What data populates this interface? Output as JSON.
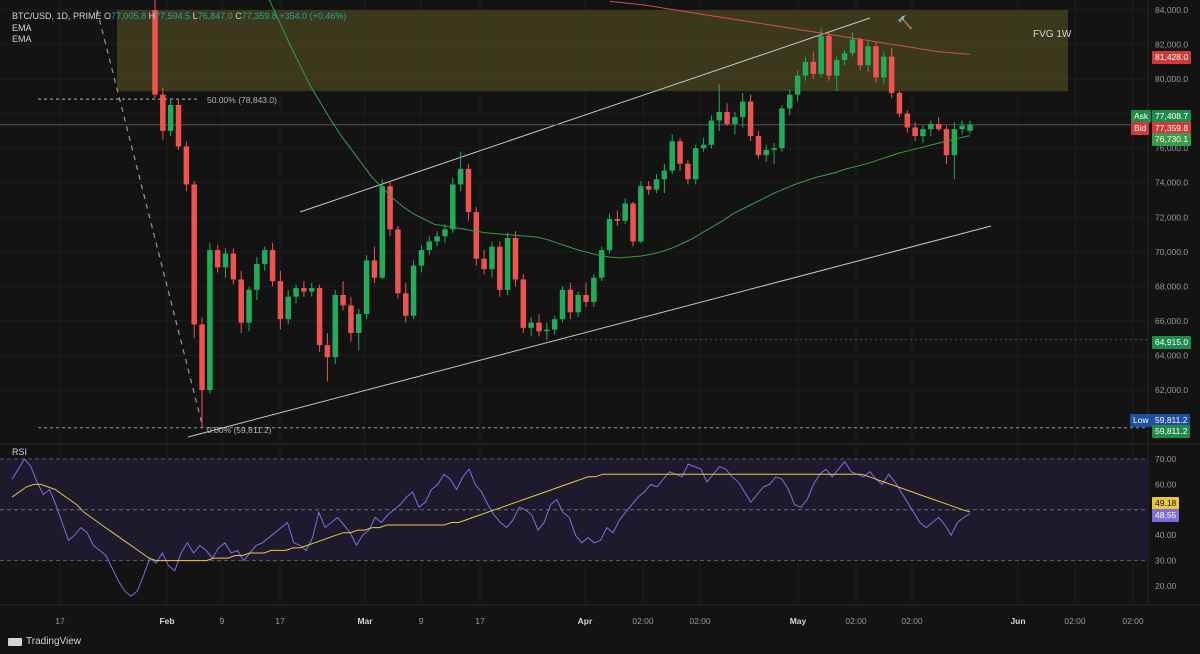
{
  "header": {
    "symbol": "BTC/USD, 1D, PRIME",
    "o_label": "O",
    "o_value": "77,005.8",
    "h_label": "H",
    "h_value": "77,594.5",
    "l_label": "L",
    "l_value": "76,847.0",
    "c_label": "C",
    "c_value": "77,359.8",
    "change": "+354.0 (+0.46%)",
    "ema1": "EMA",
    "ema2": "EMA"
  },
  "annotations": {
    "fvg": "FVG 1W",
    "fib50": "50.00% (78,843.0)",
    "fib0": "0.00% (59,811.2)",
    "hammer": "🔨"
  },
  "price_tags": {
    "ema_red": "81,428.0",
    "ask_label": "Ask",
    "ask": "77,408.7",
    "bid_label": "Bid",
    "bid": "77,359.8",
    "ema_green": "76,730.1",
    "level": "64,915.0",
    "low_label": "Low",
    "low": "59,811.2",
    "low2": "59,811.2",
    "rsi_value": "48.55",
    "rsi_ma": "49.18"
  },
  "rsi_title": "RSI",
  "logo": "TradingView",
  "colors": {
    "up": "#26a69a",
    "up_bright": "#22ab5a",
    "down": "#ef5350",
    "ema_fast": "#3a9c4a",
    "ema_slow": "#d05050",
    "fvg_fill": "#4a4520",
    "rsi_line": "#7e6fd8",
    "rsi_ma": "#e8c840"
  },
  "chart_data": [
    {
      "type": "candlestick",
      "title": "BTC/USD, 1D, PRIME",
      "y_ticks": [
        84000,
        82000,
        80000,
        78000,
        76000,
        74000,
        72000,
        70000,
        68000,
        66000,
        64000,
        62000
      ],
      "y_tick_labels": [
        "84,000.0",
        "82,000.0",
        "80,000.0",
        "78,000.0",
        "76,000.0",
        "74,000.0",
        "72,000.0",
        "70,000.0",
        "68,000.0",
        "66,000.0",
        "64,000.0",
        "62,000.0"
      ],
      "x_tick_labels": [
        "17",
        "Feb",
        "9",
        "17",
        "Mar",
        "9",
        "17",
        "Apr",
        "02:00",
        "02:00",
        "May",
        "02:00",
        "02:00",
        "Jun",
        "02:00",
        "02:00"
      ],
      "x_tick_bold": [
        false,
        true,
        false,
        false,
        true,
        false,
        false,
        true,
        false,
        false,
        true,
        false,
        false,
        true,
        false,
        false
      ],
      "ylim": [
        58500,
        85000
      ],
      "fib_levels": [
        78843.0,
        59811.2
      ],
      "horizontal_levels": [
        64915.0,
        59811.2
      ],
      "fvg_zone": [
        79300,
        84000
      ],
      "candles": [
        [
          84000,
          85000,
          78900,
          79100
        ],
        [
          79100,
          79500,
          76500,
          77000
        ],
        [
          77000,
          78900,
          76700,
          78500
        ],
        [
          78500,
          78800,
          75900,
          76100
        ],
        [
          76100,
          76400,
          73500,
          73900
        ],
        [
          73900,
          74100,
          65000,
          65800
        ],
        [
          65800,
          66200,
          59811,
          62000
        ],
        [
          62000,
          70500,
          61800,
          70100
        ],
        [
          70100,
          70400,
          68800,
          69100
        ],
        [
          69100,
          70200,
          68500,
          69900
        ],
        [
          69900,
          70200,
          68100,
          68400
        ],
        [
          68400,
          68900,
          65300,
          65900
        ],
        [
          65900,
          68000,
          65400,
          67800
        ],
        [
          67800,
          69700,
          67200,
          69300
        ],
        [
          69300,
          70300,
          68900,
          70100
        ],
        [
          70100,
          70500,
          68000,
          68300
        ],
        [
          68300,
          68900,
          65500,
          66100
        ],
        [
          66100,
          67800,
          65800,
          67400
        ],
        [
          67400,
          68100,
          67000,
          67900
        ],
        [
          67900,
          68300,
          67400,
          67700
        ],
        [
          67700,
          68200,
          67400,
          67900
        ],
        [
          67900,
          68100,
          64200,
          64600
        ],
        [
          64600,
          65300,
          62500,
          63900
        ],
        [
          63900,
          67800,
          63500,
          67500
        ],
        [
          67500,
          68300,
          66600,
          66900
        ],
        [
          66900,
          67400,
          64800,
          65300
        ],
        [
          65300,
          66700,
          64300,
          66400
        ],
        [
          66400,
          69800,
          66100,
          69500
        ],
        [
          69500,
          70300,
          68200,
          68500
        ],
        [
          68500,
          74200,
          68400,
          73800
        ],
        [
          73800,
          74100,
          70900,
          71300
        ],
        [
          71300,
          71500,
          67300,
          67600
        ],
        [
          67600,
          68200,
          65900,
          66300
        ],
        [
          66300,
          69500,
          66100,
          69200
        ],
        [
          69200,
          70400,
          68800,
          70100
        ],
        [
          70100,
          70900,
          69800,
          70600
        ],
        [
          70600,
          71200,
          70300,
          70900
        ],
        [
          70900,
          71600,
          70500,
          71300
        ],
        [
          71300,
          74300,
          71100,
          73900
        ],
        [
          73900,
          75800,
          73500,
          74800
        ],
        [
          74800,
          75100,
          71800,
          72300
        ],
        [
          72300,
          72600,
          69200,
          69600
        ],
        [
          69600,
          70100,
          68700,
          69000
        ],
        [
          69000,
          70600,
          68500,
          70300
        ],
        [
          70300,
          70600,
          67400,
          67800
        ],
        [
          67800,
          71100,
          67500,
          70800
        ],
        [
          70800,
          71200,
          68000,
          68400
        ],
        [
          68400,
          68700,
          65300,
          65600
        ],
        [
          65600,
          66200,
          65100,
          65900
        ],
        [
          65900,
          66400,
          65100,
          65400
        ],
        [
          65400,
          65900,
          64900,
          65500
        ],
        [
          65500,
          66300,
          65200,
          66100
        ],
        [
          66100,
          68000,
          65900,
          67800
        ],
        [
          67800,
          68200,
          66100,
          66500
        ],
        [
          66500,
          67700,
          66200,
          67500
        ],
        [
          67500,
          68200,
          66800,
          67100
        ],
        [
          67100,
          68700,
          66800,
          68500
        ],
        [
          68500,
          70300,
          68300,
          70100
        ],
        [
          70100,
          72200,
          69900,
          71900
        ],
        [
          71900,
          72400,
          71500,
          71800
        ],
        [
          71800,
          73100,
          71600,
          72800
        ],
        [
          72800,
          72900,
          70300,
          70600
        ],
        [
          70600,
          74100,
          70500,
          73800
        ],
        [
          73800,
          74100,
          73300,
          73600
        ],
        [
          73600,
          74500,
          73400,
          74200
        ],
        [
          74200,
          75100,
          73400,
          74700
        ],
        [
          74700,
          76800,
          74500,
          76400
        ],
        [
          76400,
          76600,
          74700,
          75100
        ],
        [
          75100,
          75300,
          73900,
          74200
        ],
        [
          74200,
          76200,
          73900,
          76000
        ],
        [
          76000,
          76600,
          75800,
          76200
        ],
        [
          76200,
          77900,
          76000,
          77600
        ],
        [
          77600,
          79700,
          77000,
          78100
        ],
        [
          78100,
          78600,
          77300,
          77400
        ],
        [
          77400,
          78100,
          76800,
          77800
        ],
        [
          77800,
          79200,
          77200,
          78700
        ],
        [
          78700,
          79100,
          76400,
          76700
        ],
        [
          76700,
          77000,
          75400,
          75600
        ],
        [
          75600,
          76200,
          75200,
          75900
        ],
        [
          75900,
          76300,
          75100,
          76000
        ],
        [
          76000,
          78500,
          75800,
          78300
        ],
        [
          78300,
          79400,
          77900,
          79100
        ],
        [
          79100,
          80500,
          78700,
          80200
        ],
        [
          80200,
          81300,
          79900,
          81000
        ],
        [
          81000,
          81600,
          80000,
          80300
        ],
        [
          80300,
          83000,
          80100,
          82500
        ],
        [
          82500,
          82700,
          79900,
          80200
        ],
        [
          80200,
          81300,
          79300,
          81100
        ],
        [
          81100,
          81700,
          80800,
          81500
        ],
        [
          81500,
          82700,
          81300,
          82300
        ],
        [
          82300,
          82400,
          80500,
          80800
        ],
        [
          80800,
          82200,
          80400,
          81900
        ],
        [
          81900,
          82200,
          79800,
          80100
        ],
        [
          80100,
          81600,
          79700,
          81300
        ],
        [
          81300,
          81800,
          78900,
          79200
        ],
        [
          79200,
          79300,
          77800,
          78000
        ],
        [
          78000,
          78200,
          76900,
          77200
        ],
        [
          77200,
          77500,
          76400,
          76700
        ],
        [
          76700,
          77300,
          76300,
          77100
        ],
        [
          77100,
          77600,
          76700,
          77400
        ],
        [
          77400,
          77800,
          77000,
          77100
        ],
        [
          77100,
          77300,
          75100,
          75600
        ],
        [
          75600,
          77500,
          74200,
          77100
        ],
        [
          77100,
          77600,
          76800,
          77300
        ],
        [
          77005.8,
          77594.5,
          76847.0,
          77359.8
        ]
      ],
      "ema_fast": [
        93000,
        90000,
        87500,
        86000,
        84600,
        83300,
        82000,
        80800,
        79600,
        78600,
        77600,
        76700,
        75900,
        75100,
        74300,
        73700,
        73100,
        72600,
        72200,
        71900,
        71600,
        71500,
        71400,
        71300,
        71200,
        71100,
        71050,
        71000,
        70950,
        70900,
        70850,
        70700,
        70500,
        70300,
        70100,
        69950,
        69800,
        69700,
        69650,
        69700,
        69750,
        69850,
        70000,
        70200,
        70450,
        70750,
        71100,
        71450,
        71800,
        72200,
        72500,
        72800,
        73100,
        73400,
        73650,
        73900,
        74100,
        74300,
        74450,
        74600,
        74800,
        74950,
        75100,
        75300,
        75500,
        75700,
        75850,
        76000,
        76150,
        76300,
        76450,
        76600,
        76730
      ],
      "ema_fast_x": [
        0,
        2,
        4,
        6,
        8,
        10,
        12,
        14,
        16,
        18,
        20,
        22,
        24,
        26,
        28,
        30,
        32,
        34,
        36,
        38,
        40,
        42,
        44,
        46,
        48,
        50,
        52,
        54,
        56,
        58,
        60,
        62,
        64,
        66,
        68,
        70,
        72,
        74,
        76,
        78,
        80,
        82,
        84,
        86,
        88,
        90,
        92,
        94,
        96,
        98,
        100,
        102,
        104,
        106,
        108,
        110,
        112,
        114,
        116,
        118,
        120,
        122,
        124,
        126,
        128,
        130,
        132,
        134,
        136,
        138,
        140,
        142,
        144
      ],
      "ema_slow": [
        84500,
        84300,
        84000,
        83700,
        83400,
        83100,
        82800,
        82500,
        82200,
        81900,
        81600,
        81428
      ]
    },
    {
      "type": "line",
      "title": "RSI",
      "y_ticks": [
        70,
        60,
        50,
        40,
        30,
        20
      ],
      "y_tick_labels": [
        "70.00",
        "60.00",
        "50.00",
        "40.00",
        "30.00",
        "20.00"
      ],
      "ylim": [
        15,
        72
      ],
      "band": [
        30,
        70
      ],
      "midline": 50,
      "series": [
        {
          "name": "RSI",
          "values": [
            62,
            66,
            70,
            67,
            61,
            56,
            58,
            52,
            45,
            38,
            40,
            43,
            41,
            36,
            34,
            32,
            27,
            22,
            18,
            16,
            18,
            24,
            31,
            29,
            33,
            28,
            26,
            33,
            37,
            33,
            36,
            34,
            31,
            35,
            37,
            33,
            34,
            30,
            33,
            36,
            37,
            39,
            41,
            43,
            45,
            37,
            36,
            34,
            39,
            49,
            43,
            45,
            47,
            44,
            41,
            36,
            40,
            42,
            47,
            45,
            48,
            50,
            52,
            55,
            57,
            51,
            53,
            58,
            60,
            64,
            62,
            58,
            63,
            66,
            60,
            57,
            52,
            48,
            45,
            43,
            46,
            51,
            50,
            48,
            42,
            45,
            52,
            54,
            49,
            47,
            40,
            37,
            39,
            37,
            38,
            43,
            41,
            46,
            49,
            52,
            55,
            57,
            60,
            59,
            62,
            65,
            64,
            63,
            68,
            67,
            66,
            61,
            64,
            67,
            66,
            63,
            61,
            57,
            53,
            56,
            59,
            60,
            63,
            62,
            58,
            52,
            51,
            54,
            60,
            64,
            66,
            63,
            66,
            69,
            65,
            64,
            63,
            65,
            62,
            60,
            64,
            61,
            57,
            53,
            49,
            45,
            43,
            45,
            47,
            44,
            40,
            45,
            47,
            48.55
          ]
        },
        {
          "name": "RSI MA",
          "values": [
            55,
            57,
            59,
            60,
            60,
            59,
            58,
            56,
            54,
            52,
            49,
            47,
            45,
            43,
            41,
            39,
            37,
            35,
            33,
            31,
            30,
            30,
            30,
            30,
            30,
            30,
            30,
            30,
            31,
            31,
            31,
            32,
            32,
            33,
            33,
            33,
            34,
            34,
            34,
            35,
            35,
            36,
            37,
            38,
            39,
            40,
            41,
            41,
            42,
            42,
            43,
            43,
            44,
            44,
            44,
            44,
            44,
            44,
            44,
            44,
            44,
            45,
            45,
            46,
            47,
            48,
            49,
            50,
            51,
            52,
            53,
            54,
            55,
            56,
            57,
            58,
            59,
            60,
            61,
            62,
            63,
            63,
            64,
            64,
            64,
            64,
            64,
            64,
            64,
            64,
            64,
            64,
            64,
            64,
            64,
            64,
            64,
            64,
            64,
            64,
            64,
            64,
            64,
            64,
            64,
            64,
            64,
            64,
            64,
            64,
            64,
            64,
            64,
            64,
            64,
            64,
            64,
            64,
            64,
            63,
            62,
            61,
            60,
            59,
            58,
            57,
            56,
            55,
            54,
            53,
            52,
            51,
            50,
            49.18
          ]
        }
      ]
    }
  ]
}
